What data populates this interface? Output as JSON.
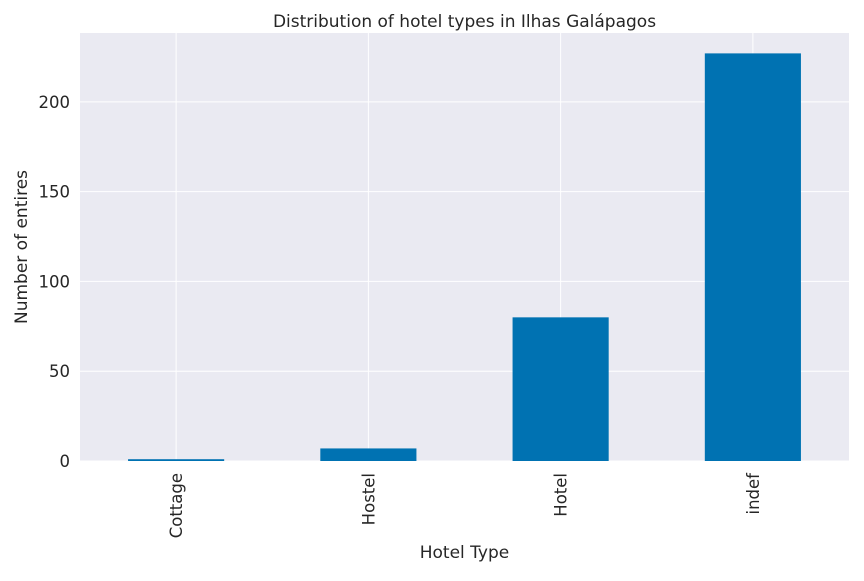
{
  "chart_data": {
    "type": "bar",
    "title": "Distribution of hotel types in Ilhas Galápagos",
    "xlabel": "Hotel Type",
    "ylabel": "Number of entires",
    "categories": [
      "Cottage",
      "Hostel",
      "Hotel",
      "indef"
    ],
    "values": [
      1,
      7,
      80,
      227
    ],
    "ylim": [
      0,
      238.35
    ],
    "yticks": [
      0,
      50,
      100,
      150,
      200
    ],
    "grid": true,
    "legend": "none",
    "colors": {
      "bar": "#0072b2",
      "plot_background": "#eaeaf2",
      "grid": "#ffffff",
      "text": "#262626"
    }
  }
}
